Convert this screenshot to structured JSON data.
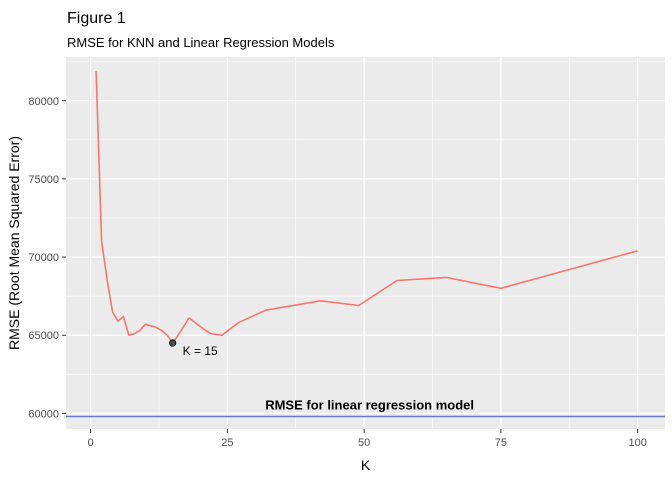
{
  "chart_data": {
    "type": "line",
    "title": "Figure 1",
    "subtitle": "RMSE for KNN and Linear Regression Models",
    "xlabel": "K",
    "ylabel": "RMSE (Root Mean Squared Error)",
    "xlim": [
      -4.5,
      105
    ],
    "ylim": [
      59000,
      82800
    ],
    "x_ticks": [
      0,
      25,
      50,
      75,
      100
    ],
    "y_ticks": [
      60000,
      65000,
      70000,
      75000,
      80000
    ],
    "y_tick_labels": [
      "60000",
      "65000",
      "70000",
      "75000",
      "80000"
    ],
    "grid": true,
    "background": "#ebebeb",
    "series": [
      {
        "color": "#f8766d",
        "x": [
          1,
          2,
          3,
          4,
          5,
          6,
          7,
          8,
          9,
          10,
          11,
          12,
          13,
          14,
          15,
          16,
          18,
          21,
          22,
          24,
          27,
          32,
          42,
          49,
          56,
          65,
          75,
          100
        ],
        "y": [
          81900,
          71000,
          68600,
          66500,
          65900,
          66200,
          65000,
          65100,
          65300,
          65700,
          65600,
          65500,
          65300,
          65000,
          64500,
          65000,
          66100,
          65300,
          65100,
          65000,
          65800,
          66600,
          67200,
          66900,
          68500,
          68700,
          68000,
          70400
        ]
      }
    ],
    "highlight_point": {
      "x": 15,
      "y": 64500,
      "label": "K = 15"
    },
    "hline": {
      "y": 59800,
      "color": "#6b78c8",
      "label": "RMSE for linear regression model",
      "label_x": 51
    }
  }
}
